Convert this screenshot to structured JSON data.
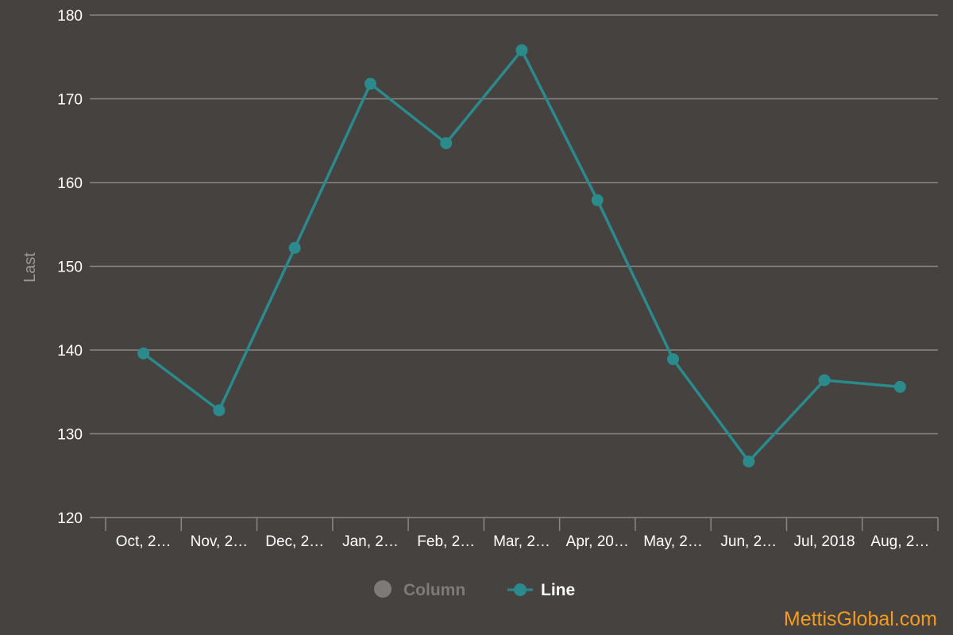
{
  "chart_data": {
    "type": "line",
    "ylabel": "Last",
    "ylim": [
      120,
      180
    ],
    "yticks": [
      120,
      130,
      140,
      150,
      160,
      170,
      180
    ],
    "categories": [
      "Oct, 2…",
      "Nov, 2…",
      "Dec, 2…",
      "Jan, 2…",
      "Feb, 2…",
      "Mar, 2…",
      "Apr, 20…",
      "May, 2…",
      "Jun, 2…",
      "Jul, 2018",
      "Aug, 2…"
    ],
    "series": [
      {
        "name": "Line",
        "values": [
          139.6,
          132.8,
          152.2,
          171.8,
          164.7,
          175.8,
          157.9,
          138.9,
          126.7,
          136.4,
          135.6
        ]
      }
    ],
    "grid": true,
    "legend": {
      "position": "bottom-center",
      "items": [
        {
          "label": "Column",
          "state": "hidden"
        },
        {
          "label": "Line",
          "state": "visible"
        }
      ]
    },
    "colors": {
      "background": "#464240",
      "line": "#2a8a8c",
      "grid": "#8a8785",
      "legend_disabled": "#7d7a78",
      "brand": "#f39c1d"
    }
  },
  "watermark": "MettisGlobal.com"
}
